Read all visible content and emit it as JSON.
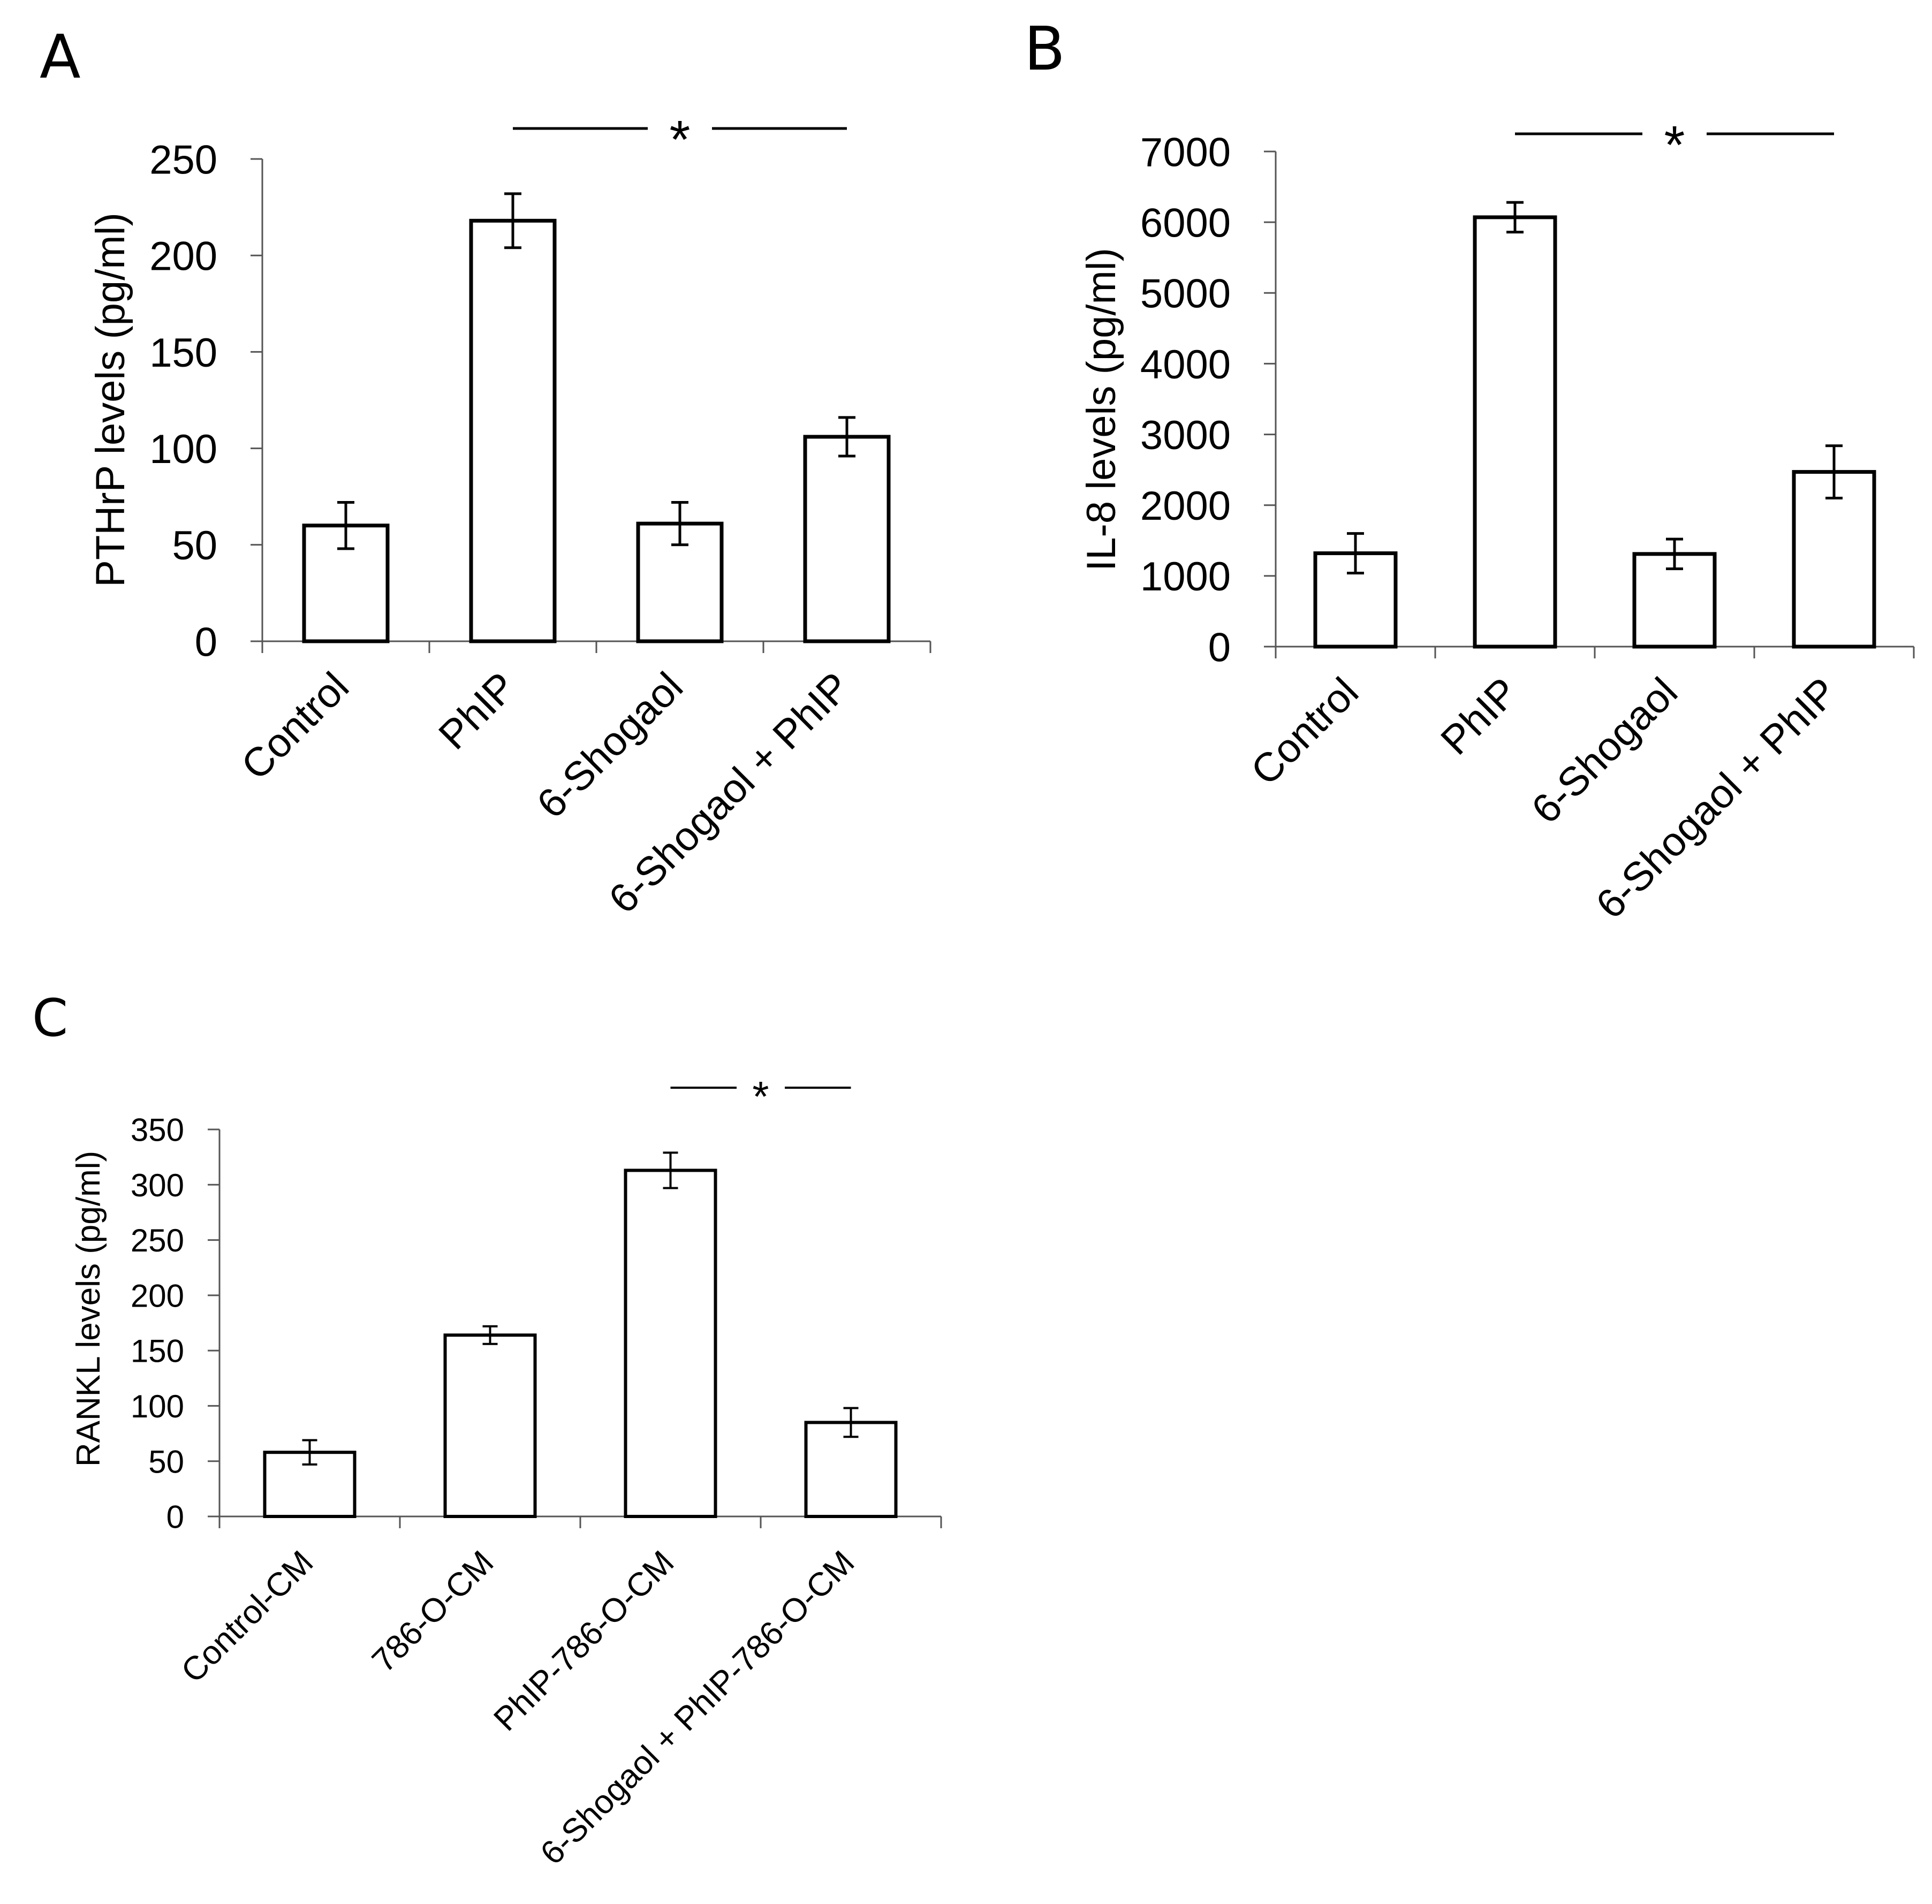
{
  "figure": {
    "background": "#ffffff",
    "ink_color": "#000000",
    "bar_fill": "#ffffff"
  },
  "chart_data": [
    {
      "panel": "A",
      "type": "bar",
      "title": "",
      "xlabel": "",
      "ylabel": "PTHrP levels (pg/ml)",
      "ylim": [
        0,
        250
      ],
      "yticks": [
        0,
        50,
        100,
        150,
        200,
        250
      ],
      "categories": [
        "Control",
        "PhIP",
        "6-Shogaol",
        "6-Shogaol + PhIP"
      ],
      "values": [
        60,
        218,
        61,
        106
      ],
      "errors": [
        12,
        14,
        11,
        10
      ],
      "grid": false,
      "significance": {
        "label": "*",
        "from": 1,
        "to": 3
      }
    },
    {
      "panel": "B",
      "type": "bar",
      "title": "",
      "xlabel": "",
      "ylabel": "IL-8 levels (pg/ml)",
      "ylim": [
        0,
        7000
      ],
      "yticks": [
        0,
        1000,
        2000,
        3000,
        4000,
        5000,
        6000,
        7000
      ],
      "categories": [
        "Control",
        "PhIP",
        "6-Shogaol",
        "6-Shogaol + PhIP"
      ],
      "values": [
        1320,
        6070,
        1310,
        2470
      ],
      "errors": [
        280,
        210,
        210,
        370
      ],
      "grid": false,
      "significance": {
        "label": "*",
        "from": 1,
        "to": 3
      }
    },
    {
      "panel": "C",
      "type": "bar",
      "title": "",
      "xlabel": "",
      "ylabel": "RANKL levels (pg/ml)",
      "ylim": [
        0,
        350
      ],
      "yticks": [
        0,
        50,
        100,
        150,
        200,
        250,
        300,
        350
      ],
      "categories": [
        "Control-CM",
        "786-O-CM",
        "PhIP-786-O-CM",
        "6-Shogaol + PhIP-786-O-CM"
      ],
      "values": [
        58,
        164,
        313,
        85
      ],
      "errors": [
        11,
        8,
        16,
        13
      ],
      "grid": false,
      "significance": {
        "label": "*",
        "from": 2,
        "to": 3
      }
    }
  ]
}
